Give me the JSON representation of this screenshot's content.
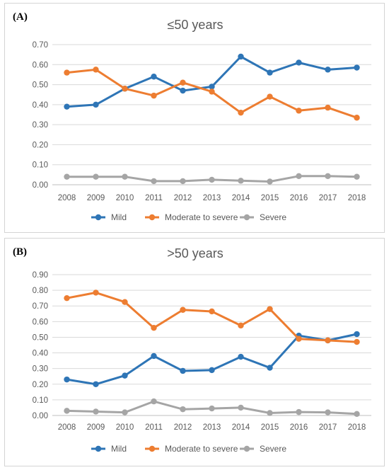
{
  "colors": {
    "mild": "#2e75b6",
    "moderate": "#ed7d31",
    "severe": "#a5a5a5",
    "grid": "#d9d9d9",
    "axis": "#bfbfbf"
  },
  "chart_data": [
    {
      "panel_label": "(A)",
      "type": "line",
      "title": "≤50 years",
      "xlabel": "",
      "ylabel": "",
      "categories": [
        "2008",
        "2009",
        "2010",
        "2011",
        "2012",
        "2013",
        "2014",
        "2015",
        "2016",
        "2017",
        "2018"
      ],
      "ylim": [
        0,
        0.7
      ],
      "y_ticks": [
        "0.00",
        "0.10",
        "0.20",
        "0.30",
        "0.40",
        "0.50",
        "0.60",
        "0.70"
      ],
      "grid": true,
      "legend_position": "bottom",
      "series": [
        {
          "name": "Mild",
          "color": "#2e75b6",
          "values": [
            0.39,
            0.4,
            0.48,
            0.54,
            0.47,
            0.49,
            0.64,
            0.56,
            0.61,
            0.575,
            0.585
          ]
        },
        {
          "name": "Moderate to severe",
          "color": "#ed7d31",
          "values": [
            0.56,
            0.575,
            0.48,
            0.445,
            0.51,
            0.465,
            0.36,
            0.44,
            0.37,
            0.385,
            0.335
          ]
        },
        {
          "name": "Severe",
          "color": "#a5a5a5",
          "values": [
            0.04,
            0.04,
            0.04,
            0.018,
            0.018,
            0.025,
            0.02,
            0.016,
            0.043,
            0.043,
            0.04
          ]
        }
      ]
    },
    {
      "panel_label": "(B)",
      "type": "line",
      "title": ">50 years",
      "xlabel": "",
      "ylabel": "",
      "categories": [
        "2008",
        "2009",
        "2010",
        "2011",
        "2012",
        "2013",
        "2014",
        "2015",
        "2016",
        "2017",
        "2018"
      ],
      "ylim": [
        0,
        0.9
      ],
      "y_ticks": [
        "0.00",
        "0.10",
        "0.20",
        "0.30",
        "0.40",
        "0.50",
        "0.60",
        "0.70",
        "0.80",
        "0.90"
      ],
      "grid": true,
      "legend_position": "bottom",
      "series": [
        {
          "name": "Mild",
          "color": "#2e75b6",
          "values": [
            0.23,
            0.2,
            0.255,
            0.38,
            0.285,
            0.29,
            0.375,
            0.305,
            0.51,
            0.48,
            0.52
          ]
        },
        {
          "name": "Moderate to severe",
          "color": "#ed7d31",
          "values": [
            0.75,
            0.785,
            0.725,
            0.56,
            0.675,
            0.665,
            0.575,
            0.68,
            0.49,
            0.48,
            0.47
          ]
        },
        {
          "name": "Severe",
          "color": "#a5a5a5",
          "values": [
            0.03,
            0.025,
            0.02,
            0.09,
            0.04,
            0.045,
            0.05,
            0.016,
            0.022,
            0.02,
            0.01
          ]
        }
      ]
    }
  ]
}
